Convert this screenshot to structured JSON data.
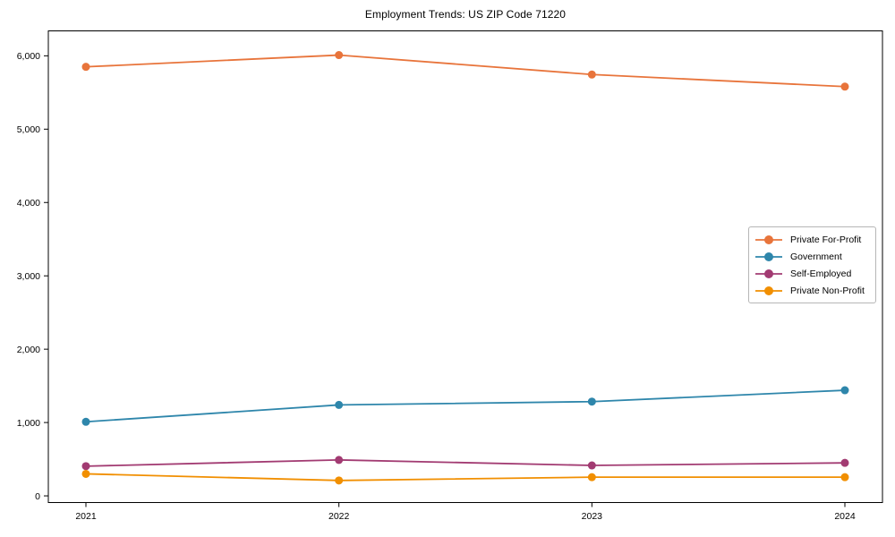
{
  "title": "Employment Trends: US ZIP Code 71220",
  "chart_data": {
    "type": "line",
    "title": "Employment Trends: US ZIP Code 71220",
    "categories": [
      "2021",
      "2022",
      "2023",
      "2024"
    ],
    "series": [
      {
        "name": "Private For-Profit",
        "color": "#E8743B",
        "values": [
          5850,
          6010,
          5745,
          5580
        ]
      },
      {
        "name": "Government",
        "color": "#2E86AB",
        "values": [
          1010,
          1240,
          1285,
          1440
        ]
      },
      {
        "name": "Self-Employed",
        "color": "#A23B72",
        "values": [
          405,
          490,
          415,
          450
        ]
      },
      {
        "name": "Private Non-Profit",
        "color": "#F18F01",
        "values": [
          300,
          210,
          255,
          255
        ]
      }
    ],
    "xlabel": "",
    "ylabel": "",
    "ylim": [
      -91,
      6340
    ],
    "yticks": [
      0,
      1000,
      2000,
      3000,
      4000,
      5000,
      6000
    ],
    "ytick_labels": [
      "0",
      "1,000",
      "2,000",
      "3,000",
      "4,000",
      "5,000",
      "6,000"
    ],
    "grid": false,
    "legend_position": "center-right",
    "marker": "circle",
    "axis_color": "#000000",
    "background_color": "#ffffff"
  }
}
